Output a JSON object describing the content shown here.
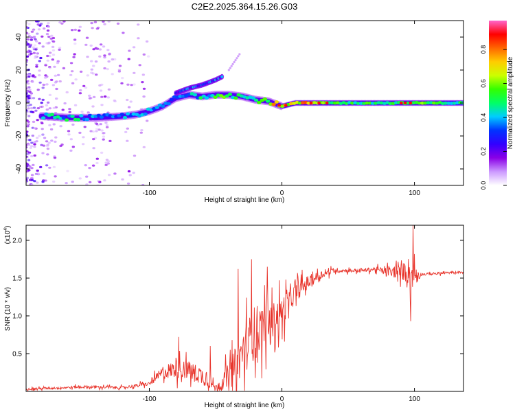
{
  "title": "C2E2.2025.364.15.26.G03",
  "colors": {
    "snr_line": "#e8332a",
    "colormap": [
      "#ffffff",
      "#cc99ff",
      "#8a00e6",
      "#3300ff",
      "#0033ff",
      "#00ccff",
      "#00ff66",
      "#33ff00",
      "#ccff00",
      "#ffcc00",
      "#ff6600",
      "#ff0000",
      "#ff66cc"
    ]
  },
  "chart_data": [
    {
      "type": "heatmap",
      "title": "C2E2.2025.364.15.26.G03",
      "xlabel": "Height of straight line (km)",
      "ylabel": "Frequency (Hz)",
      "xlim": [
        -193,
        137
      ],
      "ylim": [
        -50,
        50
      ],
      "x_ticks": [
        -100,
        0,
        100
      ],
      "y_ticks": [
        -40,
        -20,
        0,
        20,
        40
      ],
      "x_tick_labels": [
        "-100",
        "0",
        "100"
      ],
      "y_tick_labels": [
        "-40",
        "-20",
        "0",
        "20",
        "40"
      ],
      "colorbar": {
        "label": "Normalized spectral amplitude",
        "range": [
          0,
          0.97
        ],
        "ticks": [
          0.0,
          0.2,
          0.4,
          0.6,
          0.8
        ],
        "tick_labels": [
          "0.0",
          "0.2",
          "0.4",
          "0.6",
          "0.8"
        ]
      },
      "ridge": {
        "x": [
          -180,
          -160,
          -140,
          -120,
          -110,
          -100,
          -90,
          -80,
          -70,
          -60,
          -50,
          -40,
          -30,
          -20,
          -10,
          0,
          10,
          20,
          40,
          60,
          80,
          100,
          120,
          137
        ],
        "freq": [
          -8,
          -9,
          -9,
          -8,
          -7,
          -5,
          -2,
          3,
          5,
          4,
          5,
          5,
          4,
          2,
          1,
          -2,
          0,
          0,
          0,
          0,
          0,
          0,
          0,
          0
        ],
        "amp": [
          0.45,
          0.5,
          0.4,
          0.4,
          0.4,
          0.45,
          0.4,
          0.4,
          0.45,
          0.5,
          0.55,
          0.6,
          0.55,
          0.6,
          0.7,
          0.85,
          0.7,
          0.85,
          0.6,
          0.55,
          0.55,
          0.6,
          0.55,
          0.5
        ]
      },
      "upper_branch": {
        "x": [
          -80,
          -70,
          -60,
          -50,
          -45
        ],
        "freq": [
          6,
          9,
          11,
          14,
          16
        ],
        "amp": [
          0.3,
          0.4,
          0.3,
          0.4,
          0.35
        ]
      }
    },
    {
      "type": "line",
      "xlabel": "Height of straight line (km)",
      "ylabel": "SNR (10 * v/v)",
      "y_scale_label": "(x10",
      "y_scale_exponent": "4",
      "y_scale_suffix": ")",
      "xlim": [
        -193,
        137
      ],
      "ylim": [
        0,
        2.2
      ],
      "x_ticks": [
        -100,
        0,
        100
      ],
      "y_ticks": [
        0.5,
        1.0,
        1.5,
        2.0
      ],
      "x_tick_labels": [
        "-100",
        "0",
        "100"
      ],
      "y_tick_labels": [
        "0.5",
        "1.0",
        "1.5",
        "2.0"
      ],
      "baseline": {
        "x": [
          -193,
          -150,
          -120,
          -100,
          -90,
          -80,
          -70,
          -60,
          -50,
          -40,
          -30,
          -20,
          -10,
          0,
          10,
          20,
          30,
          40,
          50,
          60,
          70,
          80,
          90,
          95,
          100,
          105,
          137
        ],
        "y": [
          0.03,
          0.06,
          0.05,
          0.1,
          0.25,
          0.3,
          0.28,
          0.2,
          0.05,
          0.2,
          0.5,
          0.8,
          0.9,
          1.05,
          1.3,
          1.45,
          1.55,
          1.6,
          1.6,
          1.6,
          1.62,
          1.58,
          1.58,
          1.6,
          1.55,
          1.55,
          1.58
        ]
      },
      "noise": {
        "x": [
          -193,
          -150,
          -120,
          -100,
          -90,
          -80,
          -70,
          -60,
          -50,
          -40,
          -30,
          -20,
          -10,
          0,
          10,
          20,
          30,
          40,
          50,
          60,
          70,
          80,
          90,
          95,
          100,
          105,
          137
        ],
        "amp": [
          0.02,
          0.03,
          0.03,
          0.04,
          0.15,
          0.2,
          0.2,
          0.2,
          0.05,
          0.3,
          0.5,
          0.6,
          0.4,
          0.35,
          0.2,
          0.15,
          0.08,
          0.05,
          0.04,
          0.04,
          0.05,
          0.1,
          0.15,
          0.3,
          0.35,
          0.03,
          0.02
        ]
      },
      "peaks": [
        {
          "x": -33,
          "y": 1.62
        },
        {
          "x": -23,
          "y": 1.75
        },
        {
          "x": -11,
          "y": 1.65
        },
        {
          "x": 3,
          "y": 1.48
        },
        {
          "x": 99,
          "y": 2.2
        },
        {
          "x": 97,
          "y": 0.93
        },
        {
          "x": -78,
          "y": 0.72
        },
        {
          "x": -54,
          "y": 0.6
        }
      ]
    }
  ]
}
